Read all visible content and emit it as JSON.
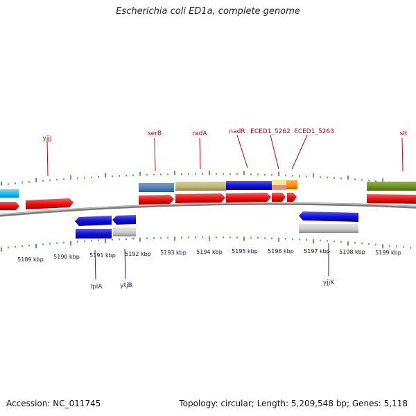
{
  "title": "Escherichia coli ED1a, complete genome",
  "footer": {
    "accession": "Accession: NC_011745",
    "summary": "Topology: circular; Length: 5,209,548 bp; Genes: 5,118"
  },
  "colors": {
    "tick": "#2e8b2e",
    "backbone": "#8a8a8a",
    "gene_red": "#ee1111",
    "gene_blue": "#1111dd",
    "label_top": "#cc0000",
    "label_bottom": "#1a1aa6"
  },
  "scale_labels": [
    "5189 kbp",
    "5190 kbp",
    "5191 kbp",
    "5192 kbp",
    "5193 kbp",
    "5194 kbp",
    "5195 kbp",
    "5196 kbp",
    "5197 kbp",
    "5198 kbp",
    "5199 kbp"
  ],
  "top_gene_labels": [
    "yjjJ",
    "serB",
    "radA",
    "nadR",
    "ECED1_5262",
    "ECED1_5263",
    "slt"
  ],
  "bottom_gene_labels": [
    "lplA",
    "ytjB",
    "yjjK"
  ]
}
